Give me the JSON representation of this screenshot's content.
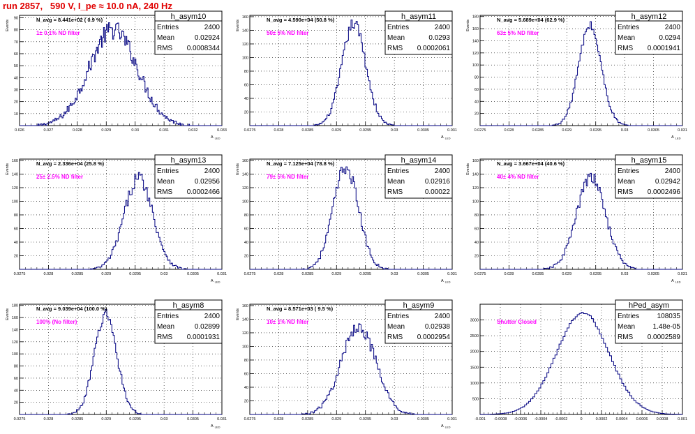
{
  "page": {
    "title": "run 2857,   590 V, I_pe ≈ 10.0 nA, 240 Hz"
  },
  "chart_data": [
    {
      "type": "bar",
      "name": "h_asym10",
      "stats": {
        "entries_label": "Entries",
        "entries": "2400",
        "mean_label": "Mean",
        "mean": "0.02924",
        "rms_label": "RMS",
        "rms": "0.0008344"
      },
      "navg": "N_avg = 8.441e+02 ( 0.9 %)",
      "annotation": "1± 0.1% ND filter",
      "xlabel": "A_LED",
      "ylabel": "Events",
      "xlim": [
        0.026,
        0.033
      ],
      "ylim": [
        0,
        92
      ],
      "xticks": [
        0.026,
        0.027,
        0.028,
        0.029,
        0.03,
        0.031,
        0.032,
        0.033
      ],
      "xtick_labels": [
        "0.026",
        "0.027",
        "0.028",
        "0.029",
        "0.03",
        "0.031",
        "0.032",
        "0.033"
      ],
      "yticks": [
        10,
        20,
        30,
        40,
        50,
        60,
        70,
        80,
        90
      ],
      "bins": 200,
      "bin_range": [
        0.026,
        0.033
      ],
      "gauss_mean": 0.02924,
      "gauss_sigma": 0.00083,
      "peak": 80,
      "noise": 8
    },
    {
      "type": "bar",
      "name": "h_asym11",
      "stats": {
        "entries_label": "Entries",
        "entries": "2400",
        "mean_label": "Mean",
        "mean": "0.0293",
        "rms_label": "RMS",
        "rms": "0.0002061"
      },
      "navg": "N_avg = 4.590e+04 (50.8 %)",
      "annotation": "50± 5% ND filter",
      "xlabel": "A_LED",
      "ylabel": "Events",
      "xlim": [
        0.0275,
        0.031
      ],
      "ylim": [
        0,
        162
      ],
      "xticks": [
        0.0275,
        0.028,
        0.0285,
        0.029,
        0.0295,
        0.03,
        0.0305,
        0.031
      ],
      "xtick_labels": [
        "0.0275",
        "0.028",
        "0.0285",
        "0.029",
        "0.0295",
        "0.03",
        "0.0305",
        "0.031"
      ],
      "yticks": [
        20,
        40,
        60,
        80,
        100,
        120,
        140,
        160
      ],
      "bins": 160,
      "bin_range": [
        0.0275,
        0.031
      ],
      "gauss_mean": 0.0293,
      "gauss_sigma": 0.000206,
      "peak": 150,
      "noise": 9
    },
    {
      "type": "bar",
      "name": "h_asym12",
      "stats": {
        "entries_label": "Entries",
        "entries": "2400",
        "mean_label": "Mean",
        "mean": "0.0294",
        "rms_label": "RMS",
        "rms": "0.0001941"
      },
      "navg": "N_avg = 5.689e+04 (62.9 %)",
      "annotation": "63± 5% ND filter",
      "xlabel": "A_LED",
      "ylabel": "Events",
      "xlim": [
        0.0275,
        0.031
      ],
      "ylim": [
        0,
        182
      ],
      "xticks": [
        0.0275,
        0.028,
        0.0285,
        0.029,
        0.0295,
        0.03,
        0.0305,
        0.031
      ],
      "xtick_labels": [
        "0.0275",
        "0.028",
        "0.0285",
        "0.029",
        "0.0295",
        "0.03",
        "0.0305",
        "0.031"
      ],
      "yticks": [
        20,
        40,
        60,
        80,
        100,
        120,
        140,
        160,
        180
      ],
      "bins": 160,
      "bin_range": [
        0.0275,
        0.031
      ],
      "gauss_mean": 0.0294,
      "gauss_sigma": 0.000194,
      "peak": 165,
      "noise": 8
    },
    {
      "type": "bar",
      "name": "h_asym13",
      "stats": {
        "entries_label": "Entries",
        "entries": "2400",
        "mean_label": "Mean",
        "mean": "0.02956",
        "rms_label": "RMS",
        "rms": "0.0002466"
      },
      "navg": "N_avg = 2.336e+04 (25.8 %)",
      "annotation": "25± 2.5% ND filter",
      "xlabel": "A_LED",
      "ylabel": "Events",
      "xlim": [
        0.0275,
        0.031
      ],
      "ylim": [
        0,
        162
      ],
      "xticks": [
        0.0275,
        0.028,
        0.0285,
        0.029,
        0.0295,
        0.03,
        0.0305,
        0.031
      ],
      "xtick_labels": [
        "0.0275",
        "0.028",
        "0.0285",
        "0.029",
        "0.0295",
        "0.03",
        "0.0305",
        "0.031"
      ],
      "yticks": [
        20,
        40,
        60,
        80,
        100,
        120,
        140,
        160
      ],
      "bins": 160,
      "bin_range": [
        0.0275,
        0.031
      ],
      "gauss_mean": 0.02956,
      "gauss_sigma": 0.000247,
      "peak": 135,
      "noise": 10
    },
    {
      "type": "bar",
      "name": "h_asym14",
      "stats": {
        "entries_label": "Entries",
        "entries": "2400",
        "mean_label": "Mean",
        "mean": "0.02916",
        "rms_label": "RMS",
        "rms": "0.00022"
      },
      "navg": "N_avg = 7.125e+04 (78.8 %)",
      "annotation": "79± 5% ND filter",
      "xlabel": "A_LED",
      "ylabel": "Events",
      "xlim": [
        0.0275,
        0.031
      ],
      "ylim": [
        0,
        162
      ],
      "xticks": [
        0.0275,
        0.028,
        0.0285,
        0.029,
        0.0295,
        0.03,
        0.0305,
        0.031
      ],
      "xtick_labels": [
        "0.0275",
        "0.028",
        "0.0285",
        "0.029",
        "0.0295",
        "0.03",
        "0.0305",
        "0.031"
      ],
      "yticks": [
        20,
        40,
        60,
        80,
        100,
        120,
        140,
        160
      ],
      "bins": 160,
      "bin_range": [
        0.0275,
        0.031
      ],
      "gauss_mean": 0.02916,
      "gauss_sigma": 0.00022,
      "peak": 150,
      "noise": 10
    },
    {
      "type": "bar",
      "name": "h_asym15",
      "stats": {
        "entries_label": "Entries",
        "entries": "2400",
        "mean_label": "Mean",
        "mean": "0.02942",
        "rms_label": "RMS",
        "rms": "0.0002496"
      },
      "navg": "N_avg = 3.667e+04 (40.6 %)",
      "annotation": "40± 4% ND filter",
      "xlabel": "A_LED",
      "ylabel": "Events",
      "xlim": [
        0.0275,
        0.031
      ],
      "ylim": [
        0,
        162
      ],
      "xticks": [
        0.0275,
        0.028,
        0.0285,
        0.029,
        0.0295,
        0.03,
        0.0305,
        0.031
      ],
      "xtick_labels": [
        "0.0275",
        "0.028",
        "0.0285",
        "0.029",
        "0.0295",
        "0.03",
        "0.0305",
        "0.031"
      ],
      "yticks": [
        20,
        40,
        60,
        80,
        100,
        120,
        140,
        160
      ],
      "bins": 160,
      "bin_range": [
        0.0275,
        0.031
      ],
      "gauss_mean": 0.02942,
      "gauss_sigma": 0.00025,
      "peak": 135,
      "noise": 9
    },
    {
      "type": "bar",
      "name": "h_asym8",
      "stats": {
        "entries_label": "Entries",
        "entries": "2400",
        "mean_label": "Mean",
        "mean": "0.02899",
        "rms_label": "RMS",
        "rms": "0.0001931"
      },
      "navg": "N_avg = 9.039e+04 (100.0 %)",
      "annotation": "100% (No filter)",
      "xlabel": "A_LED",
      "ylabel": "Events",
      "xlim": [
        0.0275,
        0.031
      ],
      "ylim": [
        0,
        182
      ],
      "xticks": [
        0.0275,
        0.028,
        0.0285,
        0.029,
        0.0295,
        0.03,
        0.0305,
        0.031
      ],
      "xtick_labels": [
        "0.0275",
        "0.028",
        "0.0285",
        "0.029",
        "0.0295",
        "0.03",
        "0.0305",
        "0.031"
      ],
      "yticks": [
        20,
        40,
        60,
        80,
        100,
        120,
        140,
        160,
        180
      ],
      "bins": 160,
      "bin_range": [
        0.0275,
        0.031
      ],
      "gauss_mean": 0.02899,
      "gauss_sigma": 0.000193,
      "peak": 165,
      "noise": 10
    },
    {
      "type": "bar",
      "name": "h_asym9",
      "stats": {
        "entries_label": "Entries",
        "entries": "2400",
        "mean_label": "Mean",
        "mean": "0.02938",
        "rms_label": "RMS",
        "rms": "0.0002954"
      },
      "navg": "N_avg = 8.571e+03 ( 9.5 %)",
      "annotation": "10± 1% ND filter",
      "xlabel": "A_LED",
      "ylabel": "Events",
      "xlim": [
        0.0275,
        0.031
      ],
      "ylim": [
        0,
        162
      ],
      "xticks": [
        0.0275,
        0.028,
        0.0285,
        0.029,
        0.0295,
        0.03,
        0.0305,
        0.031
      ],
      "xtick_labels": [
        "0.0275",
        "0.028",
        "0.0285",
        "0.029",
        "0.0295",
        "0.03",
        "0.0305",
        "0.031"
      ],
      "yticks": [
        20,
        40,
        60,
        80,
        100,
        120,
        140,
        160
      ],
      "bins": 160,
      "bin_range": [
        0.0275,
        0.031
      ],
      "gauss_mean": 0.02938,
      "gauss_sigma": 0.000295,
      "peak": 130,
      "noise": 10
    },
    {
      "type": "bar",
      "name": "hPed_asym",
      "stats": {
        "entries_label": "Entries",
        "entries": "108035",
        "mean_label": "Mean",
        "mean": "1.48e-05",
        "rms_label": "RMS",
        "rms": "0.0002589"
      },
      "navg": "",
      "annotation": "Shutter Closed",
      "xlabel": "",
      "ylabel": "",
      "xlim": [
        -0.001,
        0.001
      ],
      "ylim": [
        0,
        3500
      ],
      "xticks": [
        -0.001,
        -0.0008,
        -0.0006,
        -0.0004,
        -0.0002,
        0,
        0.0002,
        0.0004,
        0.0006,
        0.0008,
        0.001
      ],
      "xtick_labels": [
        "-0.001",
        "-0.0008",
        "-0.0006",
        "-0.0004",
        "-0.0002",
        "0",
        "0.0002",
        "0.0004",
        "0.0006",
        "0.0008",
        "0.001"
      ],
      "yticks": [
        500,
        1000,
        1500,
        2000,
        2500,
        3000
      ],
      "bins": 100,
      "bin_range": [
        -0.001,
        0.001
      ],
      "gauss_mean": 1.48e-05,
      "gauss_sigma": 0.000259,
      "peak": 3230,
      "noise": 40
    }
  ]
}
